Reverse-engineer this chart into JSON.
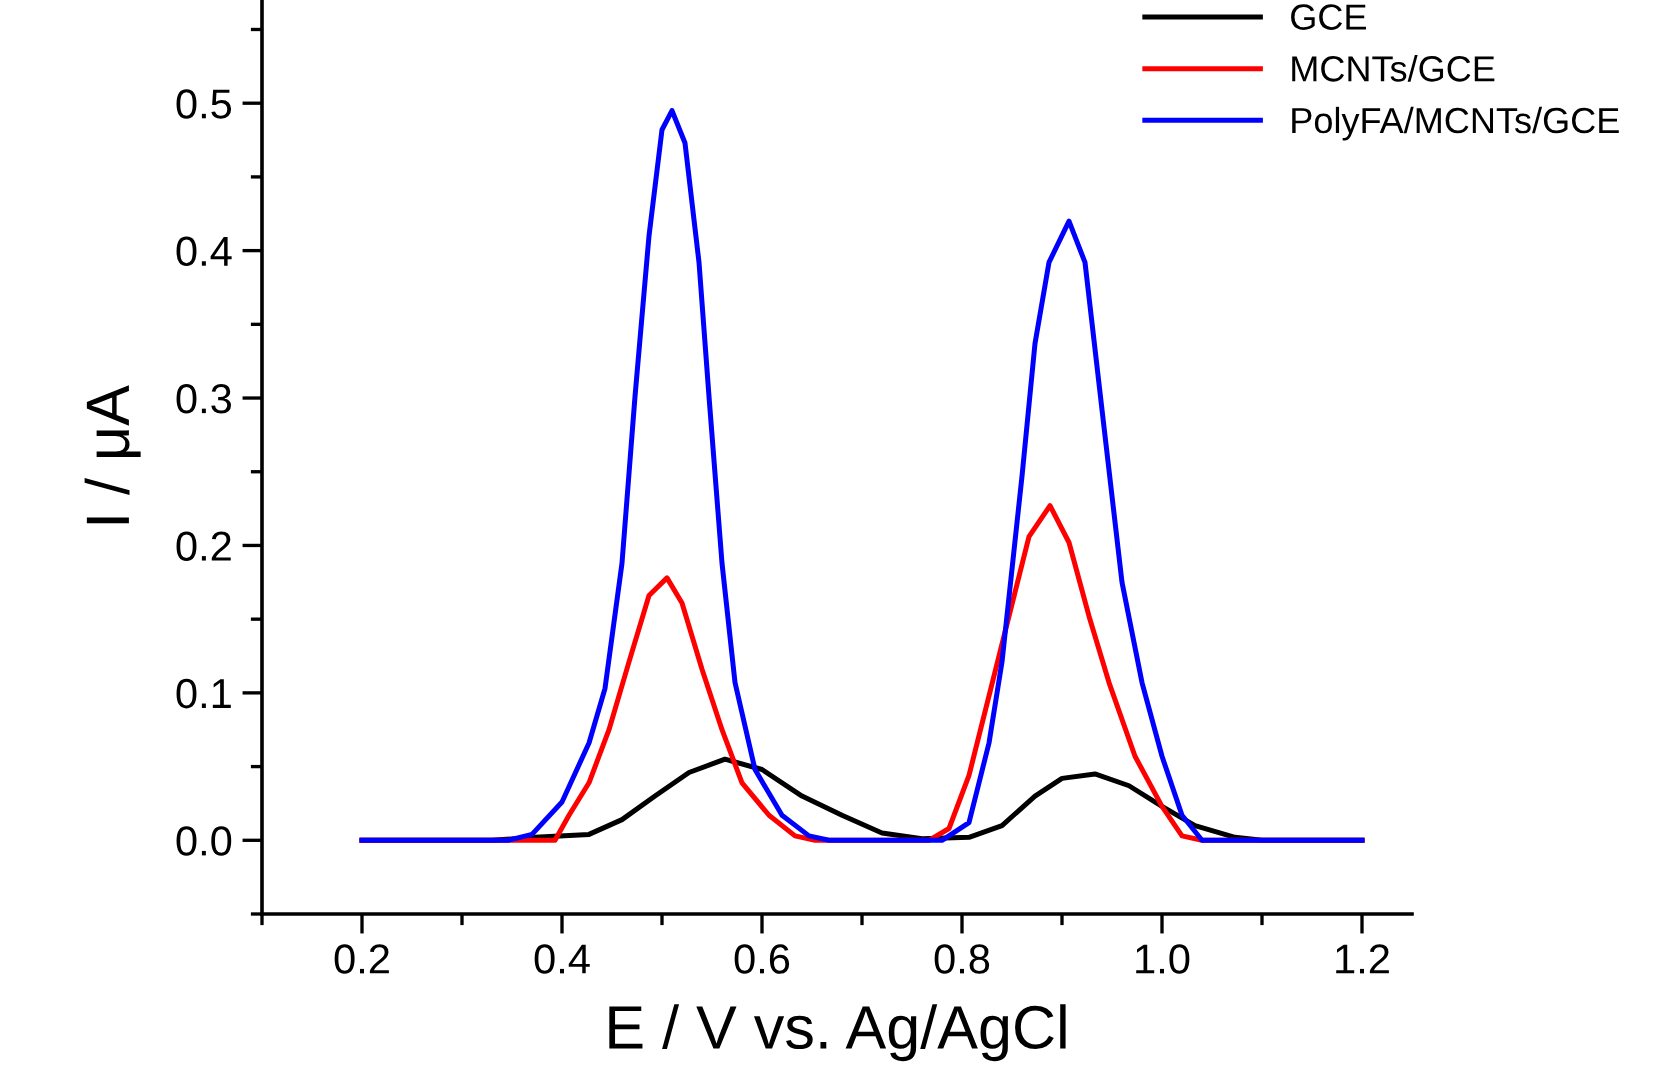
{
  "chart_data": {
    "type": "line",
    "xlabel": "E / V vs. Ag/AgCl",
    "ylabel": "I / μA",
    "xlim": [
      0.1,
      1.25
    ],
    "ylim": [
      -0.05,
      0.57
    ],
    "xticks": [
      {
        "value": 0.1,
        "label": null
      },
      0.2,
      {
        "value": 0.3,
        "label": null
      },
      0.4,
      {
        "value": 0.5,
        "label": null
      },
      0.6,
      {
        "value": 0.7,
        "label": null
      },
      0.8,
      {
        "value": 0.9,
        "label": null
      },
      {
        "value": 1.0,
        "label": "1.0"
      },
      {
        "value": 1.1,
        "label": null
      },
      1.2
    ],
    "yticks": [
      {
        "value": -0.05,
        "label": null
      },
      {
        "value": 0.0,
        "label": "0.0"
      },
      {
        "value": 0.05,
        "label": null
      },
      0.1,
      {
        "value": 0.15,
        "label": null
      },
      0.2,
      {
        "value": 0.25,
        "label": null
      },
      0.3,
      {
        "value": 0.35,
        "label": null
      },
      0.4,
      {
        "value": 0.45,
        "label": null
      },
      0.5,
      {
        "value": 0.55,
        "label": null
      }
    ],
    "grid": false,
    "legend": "top right",
    "line_style": "solid",
    "marker": "none",
    "series": [
      {
        "name": "GCE",
        "color": "#000000",
        "x": [
          0.2,
          0.33,
          0.373,
          0.427,
          0.46,
          0.493,
          0.527,
          0.563,
          0.6,
          0.64,
          0.68,
          0.72,
          0.76,
          0.807,
          0.84,
          0.873,
          0.9,
          0.933,
          0.967,
          1.0,
          1.033,
          1.073,
          1.1,
          1.2
        ],
        "values": [
          0,
          0,
          0.002,
          0.004,
          0.014,
          0.03,
          0.046,
          0.055,
          0.048,
          0.03,
          0.017,
          0.005,
          0.001,
          0.002,
          0.01,
          0.03,
          0.042,
          0.045,
          0.037,
          0.023,
          0.01,
          0.002,
          0,
          0
        ]
      },
      {
        "name": "MCNTs/GCE",
        "color": "#ff0000",
        "x": [
          0.2,
          0.393,
          0.407,
          0.427,
          0.447,
          0.467,
          0.487,
          0.505,
          0.52,
          0.54,
          0.56,
          0.58,
          0.607,
          0.633,
          0.653,
          0.767,
          0.787,
          0.807,
          0.827,
          0.847,
          0.867,
          0.888,
          0.907,
          0.927,
          0.947,
          0.973,
          1.0,
          1.02,
          1.04,
          1.2
        ],
        "values": [
          0,
          0,
          0.017,
          0.039,
          0.075,
          0.121,
          0.166,
          0.178,
          0.161,
          0.116,
          0.075,
          0.039,
          0.017,
          0.003,
          0,
          0,
          0.008,
          0.044,
          0.098,
          0.152,
          0.206,
          0.227,
          0.202,
          0.152,
          0.107,
          0.057,
          0.023,
          0.003,
          0,
          0
        ]
      },
      {
        "name": "PolyFA/MCNTs/GCE",
        "color": "#0000ff",
        "x": [
          0.2,
          0.346,
          0.37,
          0.4,
          0.427,
          0.443,
          0.46,
          0.473,
          0.487,
          0.5,
          0.51,
          0.523,
          0.537,
          0.547,
          0.56,
          0.573,
          0.593,
          0.62,
          0.647,
          0.667,
          0.78,
          0.807,
          0.827,
          0.84,
          0.86,
          0.873,
          0.887,
          0.907,
          0.923,
          0.94,
          0.96,
          0.98,
          1.0,
          1.02,
          1.04,
          1.2
        ],
        "values": [
          0,
          0,
          0.004,
          0.026,
          0.066,
          0.103,
          0.188,
          0.301,
          0.41,
          0.482,
          0.495,
          0.473,
          0.392,
          0.301,
          0.188,
          0.107,
          0.048,
          0.017,
          0.003,
          0,
          0,
          0.012,
          0.066,
          0.121,
          0.247,
          0.337,
          0.392,
          0.42,
          0.392,
          0.292,
          0.175,
          0.107,
          0.057,
          0.017,
          0,
          0
        ]
      }
    ]
  }
}
